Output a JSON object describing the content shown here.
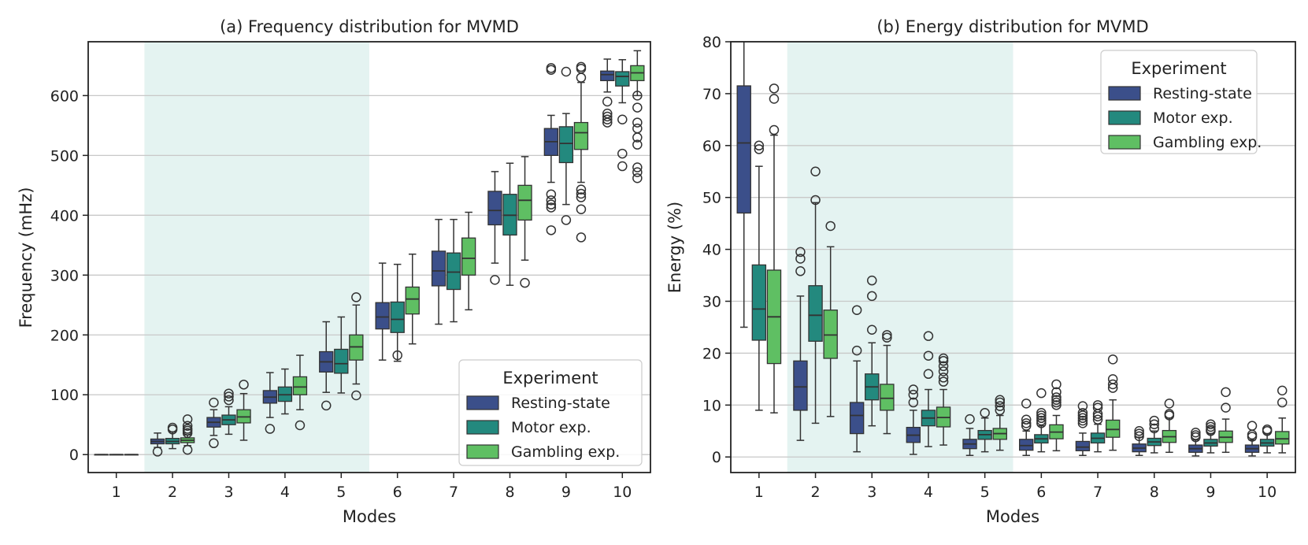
{
  "colors": {
    "resting": "#3b4f8a",
    "motor": "#23897e",
    "gambling": "#5fbf63",
    "band": "#e4f3f1",
    "grid": "#c8c8c8",
    "axis": "#222222",
    "median": "#333333"
  },
  "chart_data": [
    {
      "type": "box",
      "title": "(a) Frequency distribution for MVMD",
      "xlabel": "Modes",
      "ylabel": "Frequency  (mHz)",
      "categories": [
        "1",
        "2",
        "3",
        "4",
        "5",
        "6",
        "7",
        "8",
        "9",
        "10"
      ],
      "ylim": [
        -30,
        690
      ],
      "yticks": [
        0,
        100,
        200,
        300,
        400,
        500,
        600
      ],
      "grid": "horizontal",
      "shaded_range": [
        "2",
        "5"
      ],
      "legend": {
        "title": "Experiment",
        "position": "lower-right",
        "entries": [
          "Resting-state",
          "Motor exp.",
          "Gambling exp."
        ]
      },
      "series": [
        {
          "name": "Resting-state",
          "color_key": "resting",
          "boxes": [
            {
              "q1": 0,
              "median": 0,
              "q3": 0,
              "low": 0,
              "high": 0,
              "outliers": []
            },
            {
              "q1": 18,
              "median": 22,
              "q3": 26,
              "low": 12,
              "high": 36,
              "outliers": [
                5
              ]
            },
            {
              "q1": 46,
              "median": 54,
              "q3": 62,
              "low": 32,
              "high": 75,
              "outliers": [
                87,
                19
              ]
            },
            {
              "q1": 86,
              "median": 96,
              "q3": 107,
              "low": 62,
              "high": 137,
              "outliers": [
                43
              ]
            },
            {
              "q1": 138,
              "median": 155,
              "q3": 172,
              "low": 104,
              "high": 222,
              "outliers": [
                82
              ]
            },
            {
              "q1": 210,
              "median": 230,
              "q3": 254,
              "low": 158,
              "high": 320,
              "outliers": []
            },
            {
              "q1": 282,
              "median": 307,
              "q3": 340,
              "low": 218,
              "high": 393,
              "outliers": []
            },
            {
              "q1": 384,
              "median": 408,
              "q3": 440,
              "low": 320,
              "high": 473,
              "outliers": [
                292
              ]
            },
            {
              "q1": 500,
              "median": 523,
              "q3": 545,
              "low": 455,
              "high": 567,
              "outliers": [
                646,
                643,
                435,
                425,
                418,
                413,
                375
              ]
            },
            {
              "q1": 625,
              "median": 635,
              "q3": 641,
              "low": 606,
              "high": 661,
              "outliers": [
                590,
                570,
                565,
                560,
                555
              ]
            }
          ]
        },
        {
          "name": "Motor exp.",
          "color_key": "motor",
          "boxes": [
            {
              "q1": 0,
              "median": 0,
              "q3": 0,
              "low": 0,
              "high": 0,
              "outliers": []
            },
            {
              "q1": 18,
              "median": 22,
              "q3": 27,
              "low": 10,
              "high": 38,
              "outliers": [
                45,
                42
              ]
            },
            {
              "q1": 50,
              "median": 58,
              "q3": 66,
              "low": 34,
              "high": 80,
              "outliers": [
                102,
                97,
                91
              ]
            },
            {
              "q1": 89,
              "median": 100,
              "q3": 113,
              "low": 68,
              "high": 143,
              "outliers": []
            },
            {
              "q1": 136,
              "median": 152,
              "q3": 176,
              "low": 103,
              "high": 230,
              "outliers": []
            },
            {
              "q1": 204,
              "median": 226,
              "q3": 255,
              "low": 156,
              "high": 318,
              "outliers": [
                166
              ]
            },
            {
              "q1": 276,
              "median": 305,
              "q3": 337,
              "low": 222,
              "high": 393,
              "outliers": []
            },
            {
              "q1": 367,
              "median": 400,
              "q3": 435,
              "low": 283,
              "high": 487,
              "outliers": []
            },
            {
              "q1": 488,
              "median": 520,
              "q3": 548,
              "low": 418,
              "high": 570,
              "outliers": [
                640,
                392
              ]
            },
            {
              "q1": 616,
              "median": 632,
              "q3": 640,
              "low": 588,
              "high": 660,
              "outliers": [
                560,
                503,
                482
              ]
            }
          ]
        },
        {
          "name": "Gambling exp.",
          "color_key": "gambling",
          "boxes": [
            {
              "q1": 0,
              "median": 0,
              "q3": 0,
              "low": 0,
              "high": 0,
              "outliers": []
            },
            {
              "q1": 20,
              "median": 24,
              "q3": 28,
              "low": 15,
              "high": 33,
              "outliers": [
                59,
                48,
                43,
                40,
                36,
                8
              ]
            },
            {
              "q1": 53,
              "median": 63,
              "q3": 75,
              "low": 24,
              "high": 102,
              "outliers": [
                117
              ]
            },
            {
              "q1": 100,
              "median": 113,
              "q3": 130,
              "low": 75,
              "high": 166,
              "outliers": [
                49
              ]
            },
            {
              "q1": 158,
              "median": 180,
              "q3": 200,
              "low": 118,
              "high": 250,
              "outliers": [
                263,
                99
              ]
            },
            {
              "q1": 235,
              "median": 260,
              "q3": 280,
              "low": 185,
              "high": 335,
              "outliers": []
            },
            {
              "q1": 300,
              "median": 328,
              "q3": 362,
              "low": 242,
              "high": 405,
              "outliers": []
            },
            {
              "q1": 392,
              "median": 425,
              "q3": 450,
              "low": 325,
              "high": 498,
              "outliers": [
                287
              ]
            },
            {
              "q1": 510,
              "median": 538,
              "q3": 555,
              "low": 455,
              "high": 622,
              "outliers": [
                648,
                645,
                630,
                443,
                436,
                430,
                410,
                363
              ]
            },
            {
              "q1": 625,
              "median": 638,
              "q3": 650,
              "low": 600,
              "high": 675,
              "outliers": [
                600,
                580,
                555,
                545,
                530,
                518,
                480,
                472,
                462
              ]
            }
          ]
        }
      ]
    },
    {
      "type": "box",
      "title": "(b) Energy distribution for MVMD",
      "xlabel": "Modes",
      "ylabel": "Energy (%)",
      "categories": [
        "1",
        "2",
        "3",
        "4",
        "5",
        "6",
        "7",
        "8",
        "9",
        "10"
      ],
      "ylim": [
        -3,
        80
      ],
      "yticks": [
        0,
        10,
        20,
        30,
        40,
        50,
        60,
        70,
        80
      ],
      "grid": "horizontal",
      "shaded_range": [
        "2",
        "5"
      ],
      "legend": {
        "title": "Experiment",
        "position": "upper-right",
        "entries": [
          "Resting-state",
          "Motor exp.",
          "Gambling exp."
        ]
      },
      "series": [
        {
          "name": "Resting-state",
          "color_key": "resting",
          "boxes": [
            {
              "q1": 47,
              "median": 60.5,
              "q3": 71.5,
              "low": 25,
              "high": 85,
              "outliers": []
            },
            {
              "q1": 9,
              "median": 13.5,
              "q3": 18.5,
              "low": 3.2,
              "high": 31,
              "outliers": [
                39.5,
                38.2,
                35.8
              ]
            },
            {
              "q1": 4.5,
              "median": 8,
              "q3": 10.5,
              "low": 1,
              "high": 18.5,
              "outliers": [
                28.3,
                20.5
              ]
            },
            {
              "q1": 2.8,
              "median": 4.2,
              "q3": 5.7,
              "low": 0.5,
              "high": 9,
              "outliers": [
                13,
                12,
                10.5
              ]
            },
            {
              "q1": 1.6,
              "median": 2.5,
              "q3": 3.4,
              "low": 0.3,
              "high": 5.5,
              "outliers": [
                7.3
              ]
            },
            {
              "q1": 1.3,
              "median": 2.2,
              "q3": 3.4,
              "low": 0.3,
              "high": 5,
              "outliers": [
                10.3,
                7.2,
                6.5,
                6
              ]
            },
            {
              "q1": 1.2,
              "median": 1.9,
              "q3": 3,
              "low": 0.3,
              "high": 4.6,
              "outliers": [
                9.8,
                8.5,
                8,
                7.5,
                7,
                6.5
              ]
            },
            {
              "q1": 1,
              "median": 1.7,
              "q3": 2.5,
              "low": 0.3,
              "high": 3.8,
              "outliers": [
                5,
                4.5,
                4
              ]
            },
            {
              "q1": 0.9,
              "median": 1.6,
              "q3": 2.3,
              "low": 0.2,
              "high": 3.3,
              "outliers": [
                4.7,
                4.2,
                3.8
              ]
            },
            {
              "q1": 0.9,
              "median": 1.6,
              "q3": 2.3,
              "low": 0.2,
              "high": 3.3,
              "outliers": [
                6,
                4.3,
                3.9
              ]
            }
          ]
        },
        {
          "name": "Motor exp.",
          "color_key": "motor",
          "boxes": [
            {
              "q1": 22.5,
              "median": 28.5,
              "q3": 37,
              "low": 9,
              "high": 56,
              "outliers": [
                60,
                59.3
              ]
            },
            {
              "q1": 22.3,
              "median": 27.3,
              "q3": 33,
              "low": 6.5,
              "high": 49,
              "outliers": [
                55,
                49.5
              ]
            },
            {
              "q1": 11,
              "median": 13.5,
              "q3": 16,
              "low": 6,
              "high": 22,
              "outliers": [
                34,
                31,
                24.5
              ]
            },
            {
              "q1": 6,
              "median": 7.5,
              "q3": 9,
              "low": 2,
              "high": 13,
              "outliers": [
                23.3,
                19.5,
                16
              ]
            },
            {
              "q1": 3.4,
              "median": 4.3,
              "q3": 5.1,
              "low": 1,
              "high": 7.5,
              "outliers": [
                8.5
              ]
            },
            {
              "q1": 2.7,
              "median": 3.5,
              "q3": 4.3,
              "low": 1,
              "high": 6,
              "outliers": [
                12.3,
                8.5,
                8,
                7.5,
                7,
                6.5
              ]
            },
            {
              "q1": 2.7,
              "median": 3.6,
              "q3": 4.6,
              "low": 1,
              "high": 6.3,
              "outliers": [
                10,
                9.5,
                8.3,
                7.8,
                7.2
              ]
            },
            {
              "q1": 2.2,
              "median": 2.9,
              "q3": 3.6,
              "low": 0.8,
              "high": 5,
              "outliers": [
                7,
                6.3,
                5.5
              ]
            },
            {
              "q1": 2.1,
              "median": 2.7,
              "q3": 3.4,
              "low": 0.8,
              "high": 4.5,
              "outliers": [
                6.3,
                5.8,
                5.3,
                5
              ]
            },
            {
              "q1": 2.1,
              "median": 2.7,
              "q3": 3.4,
              "low": 0.8,
              "high": 4.5,
              "outliers": [
                5.3,
                5
              ]
            }
          ]
        },
        {
          "name": "Gambling exp.",
          "color_key": "gambling",
          "boxes": [
            {
              "q1": 18,
              "median": 27,
              "q3": 36,
              "low": 8.5,
              "high": 62,
              "outliers": [
                71,
                69,
                63
              ]
            },
            {
              "q1": 19,
              "median": 23.5,
              "q3": 28.3,
              "low": 7.8,
              "high": 40.5,
              "outliers": [
                44.5
              ]
            },
            {
              "q1": 9,
              "median": 11.3,
              "q3": 14,
              "low": 4.5,
              "high": 21.5,
              "outliers": [
                23.5,
                23
              ]
            },
            {
              "q1": 5.8,
              "median": 7.6,
              "q3": 9.6,
              "low": 2.3,
              "high": 13,
              "outliers": [
                19,
                18.5,
                17.5,
                16.5,
                15.3,
                14.5
              ]
            },
            {
              "q1": 3.4,
              "median": 4.5,
              "q3": 5.5,
              "low": 1.3,
              "high": 8,
              "outliers": [
                11,
                10.5,
                9.8,
                9
              ]
            },
            {
              "q1": 3.5,
              "median": 4.8,
              "q3": 6.2,
              "low": 1.2,
              "high": 8,
              "outliers": [
                14,
                12.5,
                11.5,
                11,
                10.5,
                10
              ]
            },
            {
              "q1": 3.8,
              "median": 5.3,
              "q3": 7.1,
              "low": 1.3,
              "high": 11,
              "outliers": [
                18.8,
                15,
                14,
                13.3
              ]
            },
            {
              "q1": 2.8,
              "median": 3.9,
              "q3": 5.1,
              "low": 0.9,
              "high": 7.5,
              "outliers": [
                10.3,
                8.3,
                8
              ]
            },
            {
              "q1": 2.8,
              "median": 3.8,
              "q3": 5,
              "low": 0.9,
              "high": 7.3,
              "outliers": [
                12.5,
                9.5
              ]
            },
            {
              "q1": 2.5,
              "median": 3.5,
              "q3": 4.9,
              "low": 0.8,
              "high": 7.5,
              "outliers": [
                12.8,
                10.5
              ]
            }
          ]
        }
      ]
    }
  ]
}
